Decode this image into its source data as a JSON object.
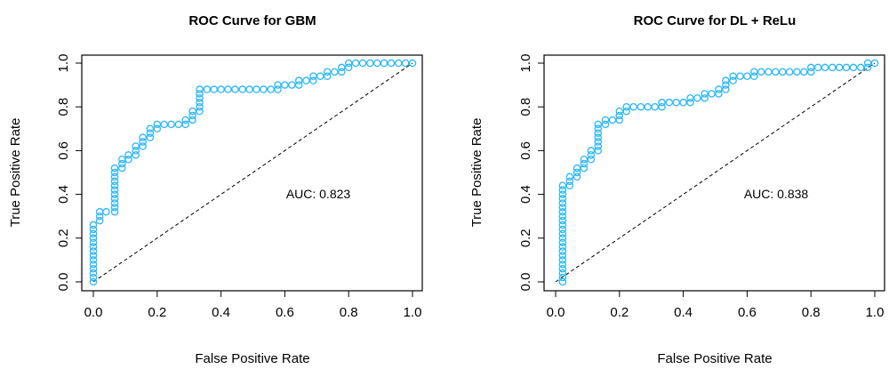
{
  "colors": {
    "points": "#29B6F6",
    "axes": "#000000"
  },
  "chart_data": [
    {
      "type": "scatter",
      "title": "ROC Curve for GBM",
      "xlabel": "False Positive Rate",
      "ylabel": "True Positive Rate",
      "xlim": [
        0,
        1
      ],
      "ylim": [
        0,
        1
      ],
      "xticks": [
        "0.0",
        "0.2",
        "0.4",
        "0.6",
        "0.8",
        "1.0"
      ],
      "yticks": [
        "0.0",
        "0.2",
        "0.4",
        "0.6",
        "0.8",
        "1.0"
      ],
      "grid": false,
      "diagonal_reference": true,
      "annotation": {
        "text": "AUC: 0.823",
        "x": 0.72,
        "y": 0.41
      },
      "points": [
        [
          0.0,
          0.0
        ],
        [
          0.0,
          0.02
        ],
        [
          0.0,
          0.04
        ],
        [
          0.0,
          0.06
        ],
        [
          0.0,
          0.08
        ],
        [
          0.0,
          0.1
        ],
        [
          0.0,
          0.12
        ],
        [
          0.0,
          0.14
        ],
        [
          0.0,
          0.16
        ],
        [
          0.0,
          0.18
        ],
        [
          0.0,
          0.2
        ],
        [
          0.0,
          0.22
        ],
        [
          0.0,
          0.24
        ],
        [
          0.0,
          0.26
        ],
        [
          0.02,
          0.28
        ],
        [
          0.02,
          0.3
        ],
        [
          0.02,
          0.32
        ],
        [
          0.04,
          0.32
        ],
        [
          0.067,
          0.32
        ],
        [
          0.067,
          0.34
        ],
        [
          0.067,
          0.36
        ],
        [
          0.067,
          0.38
        ],
        [
          0.067,
          0.4
        ],
        [
          0.067,
          0.42
        ],
        [
          0.067,
          0.44
        ],
        [
          0.067,
          0.46
        ],
        [
          0.067,
          0.48
        ],
        [
          0.067,
          0.5
        ],
        [
          0.067,
          0.52
        ],
        [
          0.09,
          0.52
        ],
        [
          0.09,
          0.54
        ],
        [
          0.09,
          0.56
        ],
        [
          0.11,
          0.56
        ],
        [
          0.11,
          0.58
        ],
        [
          0.133,
          0.58
        ],
        [
          0.133,
          0.6
        ],
        [
          0.133,
          0.62
        ],
        [
          0.155,
          0.62
        ],
        [
          0.155,
          0.64
        ],
        [
          0.155,
          0.66
        ],
        [
          0.178,
          0.66
        ],
        [
          0.178,
          0.68
        ],
        [
          0.178,
          0.7
        ],
        [
          0.2,
          0.7
        ],
        [
          0.2,
          0.72
        ],
        [
          0.222,
          0.72
        ],
        [
          0.244,
          0.72
        ],
        [
          0.267,
          0.72
        ],
        [
          0.289,
          0.72
        ],
        [
          0.289,
          0.74
        ],
        [
          0.311,
          0.74
        ],
        [
          0.311,
          0.76
        ],
        [
          0.311,
          0.78
        ],
        [
          0.333,
          0.78
        ],
        [
          0.333,
          0.8
        ],
        [
          0.333,
          0.82
        ],
        [
          0.333,
          0.84
        ],
        [
          0.333,
          0.86
        ],
        [
          0.333,
          0.88
        ],
        [
          0.356,
          0.88
        ],
        [
          0.378,
          0.88
        ],
        [
          0.4,
          0.88
        ],
        [
          0.422,
          0.88
        ],
        [
          0.444,
          0.88
        ],
        [
          0.467,
          0.88
        ],
        [
          0.489,
          0.88
        ],
        [
          0.511,
          0.88
        ],
        [
          0.533,
          0.88
        ],
        [
          0.556,
          0.88
        ],
        [
          0.578,
          0.88
        ],
        [
          0.578,
          0.9
        ],
        [
          0.6,
          0.9
        ],
        [
          0.622,
          0.9
        ],
        [
          0.644,
          0.9
        ],
        [
          0.644,
          0.92
        ],
        [
          0.667,
          0.92
        ],
        [
          0.689,
          0.92
        ],
        [
          0.689,
          0.94
        ],
        [
          0.711,
          0.94
        ],
        [
          0.733,
          0.94
        ],
        [
          0.733,
          0.96
        ],
        [
          0.756,
          0.96
        ],
        [
          0.778,
          0.96
        ],
        [
          0.778,
          0.98
        ],
        [
          0.8,
          0.98
        ],
        [
          0.8,
          1.0
        ],
        [
          0.822,
          1.0
        ],
        [
          0.844,
          1.0
        ],
        [
          0.867,
          1.0
        ],
        [
          0.889,
          1.0
        ],
        [
          0.911,
          1.0
        ],
        [
          0.933,
          1.0
        ],
        [
          0.956,
          1.0
        ],
        [
          0.978,
          1.0
        ],
        [
          1.0,
          1.0
        ]
      ]
    },
    {
      "type": "scatter",
      "title": "ROC Curve for DL + ReLu",
      "xlabel": "False Positive Rate",
      "ylabel": "True Positive Rate",
      "xlim": [
        0,
        1
      ],
      "ylim": [
        0,
        1
      ],
      "xticks": [
        "0.0",
        "0.2",
        "0.4",
        "0.6",
        "0.8",
        "1.0"
      ],
      "yticks": [
        "0.0",
        "0.2",
        "0.4",
        "0.6",
        "0.8",
        "1.0"
      ],
      "grid": false,
      "diagonal_reference": true,
      "annotation": {
        "text": "AUC: 0.838",
        "x": 0.72,
        "y": 0.41
      },
      "points": [
        [
          0.022,
          0.0
        ],
        [
          0.022,
          0.02
        ],
        [
          0.022,
          0.04
        ],
        [
          0.022,
          0.06
        ],
        [
          0.022,
          0.08
        ],
        [
          0.022,
          0.1
        ],
        [
          0.022,
          0.12
        ],
        [
          0.022,
          0.14
        ],
        [
          0.022,
          0.16
        ],
        [
          0.022,
          0.18
        ],
        [
          0.022,
          0.2
        ],
        [
          0.022,
          0.22
        ],
        [
          0.022,
          0.24
        ],
        [
          0.022,
          0.26
        ],
        [
          0.022,
          0.28
        ],
        [
          0.022,
          0.3
        ],
        [
          0.022,
          0.32
        ],
        [
          0.022,
          0.34
        ],
        [
          0.022,
          0.36
        ],
        [
          0.022,
          0.38
        ],
        [
          0.022,
          0.4
        ],
        [
          0.022,
          0.42
        ],
        [
          0.022,
          0.44
        ],
        [
          0.044,
          0.44
        ],
        [
          0.044,
          0.46
        ],
        [
          0.044,
          0.48
        ],
        [
          0.067,
          0.48
        ],
        [
          0.067,
          0.5
        ],
        [
          0.067,
          0.52
        ],
        [
          0.089,
          0.52
        ],
        [
          0.089,
          0.54
        ],
        [
          0.089,
          0.56
        ],
        [
          0.111,
          0.56
        ],
        [
          0.111,
          0.58
        ],
        [
          0.111,
          0.6
        ],
        [
          0.133,
          0.6
        ],
        [
          0.133,
          0.62
        ],
        [
          0.133,
          0.64
        ],
        [
          0.133,
          0.66
        ],
        [
          0.133,
          0.68
        ],
        [
          0.133,
          0.7
        ],
        [
          0.133,
          0.72
        ],
        [
          0.156,
          0.72
        ],
        [
          0.156,
          0.74
        ],
        [
          0.178,
          0.74
        ],
        [
          0.2,
          0.74
        ],
        [
          0.2,
          0.76
        ],
        [
          0.2,
          0.78
        ],
        [
          0.222,
          0.78
        ],
        [
          0.222,
          0.8
        ],
        [
          0.244,
          0.8
        ],
        [
          0.267,
          0.8
        ],
        [
          0.289,
          0.8
        ],
        [
          0.311,
          0.8
        ],
        [
          0.333,
          0.8
        ],
        [
          0.333,
          0.82
        ],
        [
          0.356,
          0.82
        ],
        [
          0.378,
          0.82
        ],
        [
          0.4,
          0.82
        ],
        [
          0.422,
          0.82
        ],
        [
          0.422,
          0.84
        ],
        [
          0.444,
          0.84
        ],
        [
          0.467,
          0.84
        ],
        [
          0.467,
          0.86
        ],
        [
          0.489,
          0.86
        ],
        [
          0.511,
          0.86
        ],
        [
          0.511,
          0.88
        ],
        [
          0.533,
          0.88
        ],
        [
          0.533,
          0.9
        ],
        [
          0.533,
          0.92
        ],
        [
          0.556,
          0.92
        ],
        [
          0.556,
          0.94
        ],
        [
          0.578,
          0.94
        ],
        [
          0.6,
          0.94
        ],
        [
          0.622,
          0.94
        ],
        [
          0.622,
          0.96
        ],
        [
          0.644,
          0.96
        ],
        [
          0.667,
          0.96
        ],
        [
          0.689,
          0.96
        ],
        [
          0.711,
          0.96
        ],
        [
          0.733,
          0.96
        ],
        [
          0.756,
          0.96
        ],
        [
          0.778,
          0.96
        ],
        [
          0.8,
          0.96
        ],
        [
          0.8,
          0.98
        ],
        [
          0.822,
          0.98
        ],
        [
          0.844,
          0.98
        ],
        [
          0.867,
          0.98
        ],
        [
          0.889,
          0.98
        ],
        [
          0.911,
          0.98
        ],
        [
          0.933,
          0.98
        ],
        [
          0.956,
          0.98
        ],
        [
          0.978,
          0.98
        ],
        [
          0.978,
          1.0
        ],
        [
          1.0,
          1.0
        ]
      ]
    }
  ]
}
